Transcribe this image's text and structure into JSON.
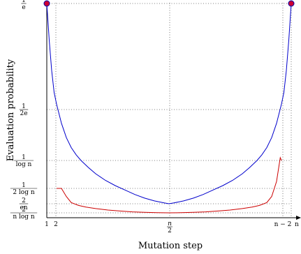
{
  "chart_data": {
    "type": "line",
    "xlabel": "Mutation step",
    "ylabel": "Evaluation probability",
    "x_tick_labels": [
      {
        "position": "1",
        "label": "1"
      },
      {
        "position": "2",
        "label": "2"
      },
      {
        "position": "n/2",
        "label_num": "n",
        "label_den": "2"
      },
      {
        "position": "n-2",
        "label": "n − 2"
      },
      {
        "position": "n",
        "label": "n"
      }
    ],
    "y_tick_labels": [
      {
        "value": "1/e",
        "num": "1",
        "den": "e"
      },
      {
        "value": "1/(2e)",
        "num": "1",
        "den": "2e"
      },
      {
        "value": "1/log n",
        "num": "1",
        "den": "log n"
      },
      {
        "value": "1/(2 log n)",
        "num": "1",
        "den": "2 log n"
      },
      {
        "value": "2/(en)",
        "num": "2",
        "den": "en"
      },
      {
        "value": "2/(n log n)",
        "num": "2",
        "den": "n log n"
      }
    ],
    "grid": "dotted",
    "series": [
      {
        "color": "#0000cc",
        "x_normalized": [
          0.0,
          0.01,
          0.02,
          0.03,
          0.04,
          0.06,
          0.08,
          0.1,
          0.12,
          0.14,
          0.17,
          0.2,
          0.24,
          0.28,
          0.32,
          0.36,
          0.4,
          0.44,
          0.48,
          0.5,
          0.52,
          0.56,
          0.6,
          0.64,
          0.68,
          0.72,
          0.76,
          0.8,
          0.83,
          0.86,
          0.88,
          0.9,
          0.92,
          0.94,
          0.96,
          0.97,
          0.98,
          0.99,
          1.0
        ],
        "y": [
          "1/e",
          0.78,
          0.6,
          0.47,
          0.4,
          0.32,
          0.27,
          0.235,
          0.21,
          0.19,
          0.17,
          0.152,
          0.133,
          0.118,
          0.106,
          0.095,
          0.086,
          0.079,
          0.074,
          0.072,
          0.074,
          0.079,
          0.086,
          0.095,
          0.106,
          0.118,
          0.133,
          0.152,
          0.17,
          0.19,
          0.21,
          0.235,
          0.27,
          0.32,
          0.4,
          0.47,
          0.6,
          0.78,
          "1/e"
        ]
      },
      {
        "color": "#cc0000",
        "x_normalized": [
          0.04,
          0.06,
          0.08,
          0.1,
          0.13,
          0.16,
          0.2,
          0.25,
          0.3,
          0.35,
          0.4,
          0.45,
          0.5,
          0.55,
          0.6,
          0.65,
          0.7,
          0.75,
          0.8,
          0.84,
          0.87,
          0.9,
          0.92,
          0.94,
          0.955,
          0.96
        ],
        "y": [
          "1/(2 log n)",
          0.11,
          0.09,
          0.075,
          0.062,
          0.052,
          0.043,
          0.034,
          0.028,
          0.023,
          0.02,
          0.018,
          0.017,
          0.018,
          0.02,
          0.023,
          0.028,
          0.034,
          0.043,
          0.052,
          0.062,
          0.075,
          0.09,
          0.13,
          0.2,
          "1/log n"
        ]
      }
    ],
    "markers": [
      {
        "x": "1",
        "y": "1/e",
        "fill": "#cc0033",
        "stroke": "#0000aa"
      },
      {
        "x": "n",
        "y": "1/e",
        "fill": "#cc0033",
        "stroke": "#0000aa"
      }
    ]
  }
}
